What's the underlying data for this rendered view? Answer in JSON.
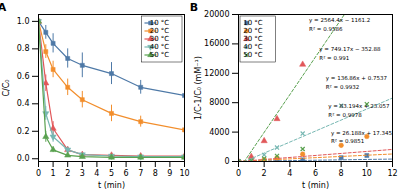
{
  "chart_data": [
    {
      "type": "line",
      "title": "A",
      "xlabel": "t (min)",
      "ylabel": "C/C₀",
      "xlim": [
        0,
        10
      ],
      "ylim": [
        -0.02,
        1.05
      ],
      "xticks": [
        0,
        1,
        2,
        3,
        4,
        5,
        6,
        7,
        8,
        9,
        10
      ],
      "yticks": [
        {
          "value": 0,
          "label": "0.0"
        },
        0.2,
        0.4,
        0.6,
        0.8,
        {
          "value": 1,
          "label": "1.0"
        }
      ],
      "legend": "upper right",
      "x": [
        0,
        0.5,
        1,
        2,
        3,
        5,
        7,
        10
      ],
      "series": [
        {
          "name": "10 °C",
          "marker": "square",
          "values": [
            1.0,
            0.92,
            0.84,
            0.73,
            0.68,
            0.62,
            0.52,
            0.46
          ],
          "errors": [
            0.0,
            0.05,
            0.07,
            0.07,
            0.09,
            0.08,
            0.05,
            0.04
          ]
        },
        {
          "name": "20 °C",
          "marker": "square",
          "values": [
            1.0,
            0.78,
            0.65,
            0.52,
            0.43,
            0.33,
            0.27,
            0.21
          ],
          "errors": [
            0.0,
            0.05,
            0.06,
            0.06,
            0.06,
            0.06,
            0.04,
            0.03
          ]
        },
        {
          "name": "30 °C",
          "marker": "triangle",
          "values": [
            1.0,
            0.55,
            0.22,
            0.065,
            0.03,
            0.025,
            0.02,
            0.02
          ],
          "errors": [
            0.0,
            0.06,
            0.05,
            0.02,
            0.008,
            0.005,
            0.004,
            0.003
          ]
        },
        {
          "name": "40 °C",
          "marker": "triangle-down",
          "values": [
            1.0,
            0.33,
            0.16,
            0.065,
            0.03,
            0.02,
            0.015,
            0.015
          ],
          "errors": [
            0.0,
            0.05,
            0.04,
            0.02,
            0.008,
            0.005,
            0.003,
            0.003
          ]
        },
        {
          "name": "50 °C",
          "marker": "triangle",
          "values": [
            1.0,
            0.16,
            0.065,
            0.025,
            0.015,
            0.01,
            0.01,
            0.01
          ],
          "errors": [
            0.0,
            0.04,
            0.02,
            0.008,
            0.005,
            0.003,
            0.002,
            0.002
          ]
        }
      ]
    },
    {
      "type": "scatter",
      "title": "B",
      "xlabel": "t (min)",
      "ylabel": "1/C-1/C₀ (mM⁻¹)",
      "xlim": [
        0,
        12
      ],
      "ylim": [
        0,
        20000
      ],
      "xticks": [
        0,
        2,
        4,
        6,
        8,
        10,
        12
      ],
      "yticks": [
        0,
        4000,
        8000,
        12000,
        16000,
        20000
      ],
      "legend": "upper left",
      "x": [
        0,
        1,
        2,
        3,
        5,
        8,
        10
      ],
      "series": [
        {
          "name": "10 °C",
          "marker": "square",
          "values": [
            0,
            26,
            52,
            110,
            230,
            520,
            820
          ],
          "fit": {
            "type": "line",
            "line_style": "dashed",
            "x": [
              0,
              12
            ],
            "values": [
              17.345,
              331.601
            ]
          }
        },
        {
          "name": "20 °C",
          "marker": "circle",
          "values": [
            0,
            90,
            250,
            500,
            1000,
            2200,
            3400
          ],
          "fit": {
            "type": "line",
            "line_style": "dashed",
            "x": [
              0,
              12
            ],
            "values": [
              23.057,
              1021.385
            ]
          }
        },
        {
          "name": "30 °C",
          "marker": "triangle",
          "values": [
            0,
            650,
            2800,
            5800,
            13200,
            null,
            null
          ],
          "fit": {
            "type": "line",
            "line_style": "dashed",
            "x": [
              0,
              12
            ],
            "values": [
              0.7537,
              1643.0737
            ]
          }
        },
        {
          "name": "40 °C",
          "marker": "x",
          "values": [
            0,
            220,
            900,
            1900,
            3800,
            7600,
            null
          ],
          "fit": {
            "type": "line",
            "line_style": "dashed",
            "x": [
              0,
              0.471,
              12
            ],
            "values": [
              0,
              0,
              8637.16
            ]
          }
        },
        {
          "name": "50 °C",
          "marker": "x",
          "values": [
            0,
            110,
            380,
            770,
            1700,
            null,
            7800
          ],
          "fit": {
            "type": "line",
            "line_style": "dashed",
            "x": [
              0,
              0.4528,
              8.2519
            ],
            "values": [
              0,
              0,
              20000
            ]
          }
        }
      ],
      "annotations": [
        {
          "text": "y = 2564.4x − 1161.2",
          "x": 5.5,
          "y": 19500
        },
        {
          "text": "R² = 0.9586",
          "x": 5.5,
          "y": 18300
        },
        {
          "text": "y = 749.17x − 352.88",
          "x": 6.3,
          "y": 15500
        },
        {
          "text": "R² = 0.991",
          "x": 6.3,
          "y": 14300
        },
        {
          "text": "y = 136.86x + 0.7537",
          "x": 6.8,
          "y": 11600
        },
        {
          "text": "R² = 0.9932",
          "x": 6.8,
          "y": 10400
        },
        {
          "text": "y = 83.194x + 23.057",
          "x": 7.0,
          "y": 7800
        },
        {
          "text": "R² = 0.9978",
          "x": 7.0,
          "y": 6600
        },
        {
          "text": "y = 26.188x + 17.345",
          "x": 7.2,
          "y": 4200
        },
        {
          "text": "R² = 0.9851",
          "x": 7.2,
          "y": 3000
        }
      ]
    }
  ]
}
